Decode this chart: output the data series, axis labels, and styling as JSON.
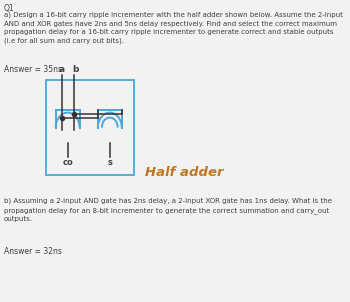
{
  "title": "Q1",
  "part_a_text": "a) Design a 16-bit carry ripple incrementer with the half adder shown below. Assume the 2-input\nAND and XOR gates have 2ns and 5ns delay respectively. Find and select the correct maximum\npropagation delay for a 16-bit carry ripple incrementer to generate correct and stable outputs\n(i.e for all sum and carry out bits).",
  "answer_a": "Answer = 35ns",
  "part_b_text": "b) Assuming a 2-input AND gate has 2ns delay, a 2-input XOR gate has 1ns delay. What is the\npropagation delay for an 8-bit incrementer to generate the correct summation and carry_out\noutputs.",
  "answer_b": "Answer = 32ns",
  "half_adder_label": "Half adder",
  "co_label": "co",
  "s_label": "s",
  "a_label": "a",
  "b_label": "b",
  "bg_color": "#f2f2f2",
  "text_color": "#404040",
  "gate_color": "#4da6d9",
  "wire_color": "#333333",
  "box_color": "#4da6d9",
  "ha_label_color": "#c07820"
}
